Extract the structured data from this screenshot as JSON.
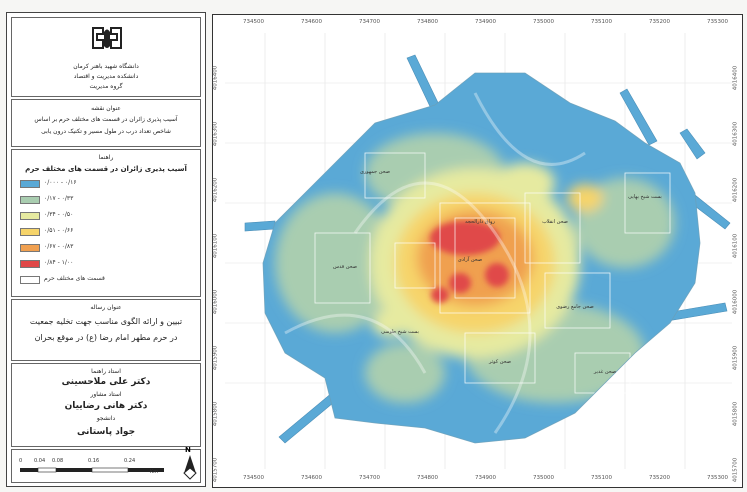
{
  "institution": {
    "line1": "دانشگاه شهید باهنر کرمان",
    "line2": "دانشکده مدیریت و اقتصاد",
    "line3": "گروه مدیریت"
  },
  "map_title": {
    "heading": "عنوان نقشه",
    "line1": "آسیب پذیری زائران در قسمت های مختلف حرم بر اساس",
    "line2": "شاخص تعداد درب در طول مسیر و تکنیک درون یابی"
  },
  "legend": {
    "heading": "راهنما",
    "subtitle": "آسیب پذیری زائران در قسمت های مختلف حرم",
    "items": [
      {
        "label": "۰/۰۰۰ - ۰/۱۶",
        "color": "#5aa9d6"
      },
      {
        "label": "۰/۱۷ - ۰/۳۳",
        "color": "#a9cdb0"
      },
      {
        "label": "۰/۳۴ - ۰/۵۰",
        "color": "#e6eaa0"
      },
      {
        "label": "۰/۵۱ - ۰/۶۶",
        "color": "#f6d46a"
      },
      {
        "label": "۰/۶۷ - ۰/۸۳",
        "color": "#f0a050"
      },
      {
        "label": "۰/۸۴ - ۱/۰۰",
        "color": "#e04848"
      },
      {
        "label": "قسمت های مختلف حرم",
        "color": "#ffffff"
      }
    ]
  },
  "thesis": {
    "heading": "عنوان رساله",
    "line1": "تبیین و ارائه الگوی مناسب جهت تخلیه جمعیت",
    "line2": "در حرم مطهر امام رضا (ع) در موقع بحران"
  },
  "advisors": {
    "supervisor_title": "استاد راهنما",
    "supervisor_name": "دکتر علی ملاحسینی",
    "advisor_title": "استاد مشاور",
    "advisor_name": "دکتر هانی رضاییان",
    "student_title": "دانشجو",
    "student_name": "جواد پاستانی"
  },
  "scalebar": {
    "labels": [
      "0",
      "0.04",
      "0.08",
      "0.16",
      "0.24"
    ],
    "unit": "Km"
  },
  "north_arrow": "N",
  "axes": {
    "x_ticks": [
      "734500",
      "734600",
      "734700",
      "734800",
      "734900",
      "735000",
      "735100",
      "735200",
      "735300"
    ],
    "y_ticks": [
      "4016400",
      "4016300",
      "4016200",
      "4016100",
      "4016000",
      "4015900",
      "4015800",
      "4015700"
    ]
  },
  "zone_labels": [
    "صحن آزادی",
    "صحن انقلاب",
    "صحن جمهوری",
    "صحن قدس",
    "صحن جامع رضوی",
    "صحن کوثر",
    "صحن غدیر",
    "رواق دارالحجه",
    "بست شیخ طوسی",
    "بست شیخ بهایی"
  ]
}
